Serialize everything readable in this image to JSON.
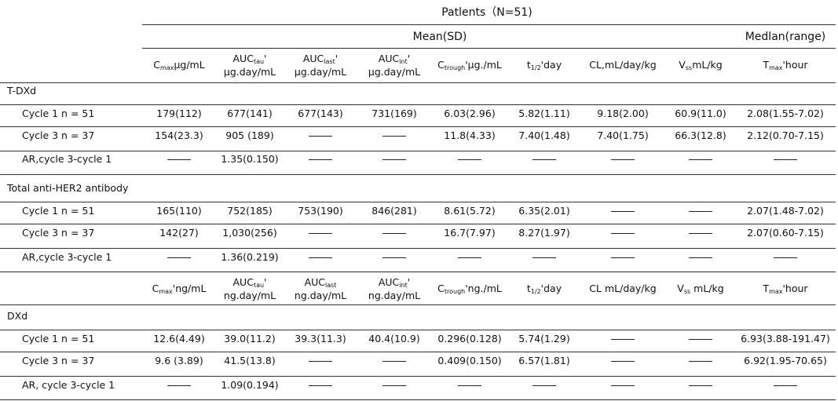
{
  "header": {
    "patients": "Patlents（N=51)",
    "mean_sd": "Mean(SD)",
    "median_range": "Medlan(range)"
  },
  "columns_mass": [
    {
      "main": "C",
      "sub": "max",
      "rest": "μg/mL"
    },
    {
      "main": "AUC",
      "sub": "tau",
      "rest": "'",
      "line2": "μg.day/mL"
    },
    {
      "main": "AUC",
      "sub": "last",
      "rest": "'",
      "line2": "μg.day/mL"
    },
    {
      "main": "AUC",
      "sub": "int",
      "rest": "'",
      "line2": "μg.day/mL"
    },
    {
      "main": "C",
      "sub": "trough",
      "rest": "'μg./mL"
    },
    {
      "main": "t",
      "sub": "1/2",
      "rest": "'day"
    },
    {
      "main": "CL,mL/day/kg",
      "sub": "",
      "rest": ""
    },
    {
      "main": "V",
      "sub": "ss",
      "rest": "mL/kg"
    },
    {
      "main": "T",
      "sub": "max",
      "rest": "'hour"
    }
  ],
  "columns_ng": [
    {
      "main": "C",
      "sub": "max",
      "rest": "'ng/mL"
    },
    {
      "main": "AUC",
      "sub": "tau",
      "rest": "'",
      "line2": "ng.day/mL"
    },
    {
      "main": "AUC",
      "sub": "last",
      "rest": "",
      "line2": "ng.day/mL"
    },
    {
      "main": "AUC",
      "sub": "int",
      "rest": "'",
      "line2": "ng.day/mL"
    },
    {
      "main": "C",
      "sub": "trough",
      "rest": "'ng./mL"
    },
    {
      "main": "t",
      "sub": "1/2",
      "rest": "'day"
    },
    {
      "main": "CL mL/day/kg",
      "sub": "",
      "rest": ""
    },
    {
      "main": "V",
      "sub": "ss",
      "rest": " mL/kg"
    },
    {
      "main": "T",
      "sub": "max",
      "rest": "'hour"
    }
  ],
  "sections": [
    {
      "title": "T-DXd",
      "rows": [
        {
          "label": "Cycle 1 n = 51",
          "values": [
            "179(112)",
            "677(141)",
            "677(143)",
            "731(169)",
            "6.03(2.96)",
            "5.82(1.11)",
            "9.18(2.00)",
            "60.9(11.0)",
            "2.08(1.55-7.02)"
          ]
        },
        {
          "label": "Cycle 3 n = 37",
          "values": [
            "154(23.3)",
            "905 (189)",
            "",
            "",
            "11.8(4.33)",
            "7.40(1.48)",
            "7.40(1.75)",
            "66.3(12.8)",
            "2.12(0.70-7.15)"
          ]
        },
        {
          "label": "AR,cycle 3-cycle 1",
          "values": [
            "",
            "1.35(0.150)",
            "",
            "",
            "",
            "",
            "",
            "",
            ""
          ]
        }
      ]
    },
    {
      "title": "Total anti-HER2 antibody",
      "rows": [
        {
          "label": "Cycle 1 n = 51",
          "values": [
            "165(110)",
            "752(185)",
            "753(190)",
            "846(281)",
            "8.61(5.72)",
            "6.35(2.01)",
            "",
            "",
            "2.07(1.48-7.02)"
          ]
        },
        {
          "label": "Cycle 3 n = 37",
          "values": [
            "142(27)",
            "1,030(256)",
            "",
            "",
            "16.7(7.97)",
            "8.27(1.97)",
            "",
            "",
            "2.07(0.60-7.15)"
          ]
        },
        {
          "label": "AR,cycle 3-cycle 1",
          "values": [
            "",
            "1.36(0.219)",
            "",
            "",
            "",
            "",
            "",
            "",
            ""
          ]
        }
      ]
    },
    {
      "title": "DXd",
      "rows": [
        {
          "label": "Cycle 1 n = 51",
          "values": [
            "12.6(4.49)",
            "39.0(11.2)",
            "39.3(11.3)",
            "40.4(10.9)",
            "0.296(0.128)",
            "5.74(1.29)",
            "",
            "",
            "6.93(3.88-191.47)"
          ]
        },
        {
          "label": "Cycle 3 n = 37",
          "values": [
            "9.6 (3.89)",
            "41.5(13.8)",
            "",
            "",
            "0.409(0.150)",
            "6.57(1.81)",
            "",
            "",
            "6.92(1.95-70.65)"
          ]
        },
        {
          "label": "AR, cycle 3-cycle 1",
          "values": [
            "",
            "1.09(0.194)",
            "",
            "",
            "",
            "",
            "",
            "",
            ""
          ]
        }
      ]
    }
  ]
}
